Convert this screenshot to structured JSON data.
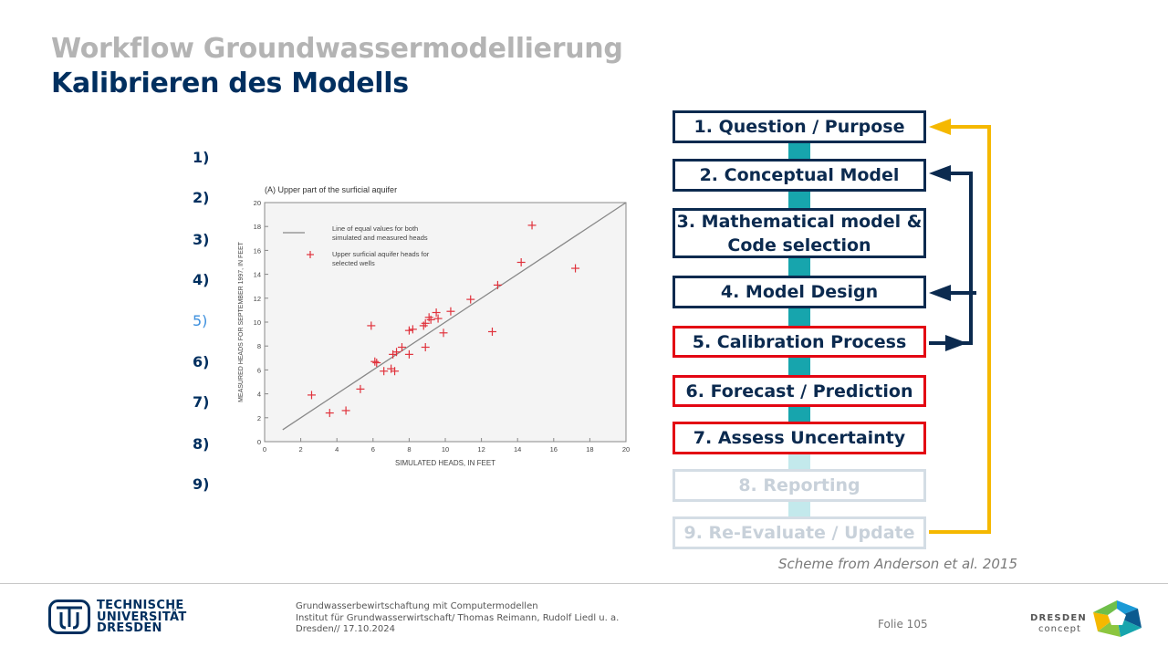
{
  "slide": {
    "title": "Workflow Groundwassermodellierung",
    "subtitle": "Kalibrieren des Modells"
  },
  "steps_numbers": [
    "1)",
    "2)",
    "3)",
    "4)",
    "5)",
    "6)",
    "7)",
    "8)",
    "9)"
  ],
  "active_step": "5)",
  "workflow": {
    "boxes": [
      {
        "label": "1. Question  / Purpose",
        "state": "normal"
      },
      {
        "label": "2. Conceptual Model",
        "state": "normal"
      },
      {
        "label": "3. Mathematical model & Code selection",
        "state": "normal"
      },
      {
        "label": "4. Model Design",
        "state": "normal"
      },
      {
        "label": "5. Calibration Process",
        "state": "highlight"
      },
      {
        "label": "6. Forecast / Prediction",
        "state": "highlight"
      },
      {
        "label": "7. Assess Uncertainty",
        "state": "highlight"
      },
      {
        "label": "8. Reporting",
        "state": "faded"
      },
      {
        "label": "9. Re-Evaluate / Update",
        "state": "faded"
      }
    ],
    "caption": "Scheme from Anderson et al. 2015",
    "colors": {
      "navy": "#0b2a4f",
      "red": "#e30613",
      "teal": "#17a5ad",
      "yellow": "#f5b800",
      "faded": "#d4dde5"
    }
  },
  "chart_data": {
    "type": "scatter",
    "title": "(A)  Upper part of the surficial aquifer",
    "xlabel": "SIMULATED HEADS, IN FEET",
    "ylabel": "MEASURED HEADS FOR SEPTEMBER 1997, IN FEET",
    "xlim": [
      0,
      20
    ],
    "ylim": [
      0,
      20
    ],
    "xticks": [
      0,
      2,
      4,
      6,
      8,
      10,
      12,
      14,
      16,
      18,
      20
    ],
    "yticks": [
      0,
      2,
      4,
      6,
      8,
      10,
      12,
      14,
      16,
      18,
      20
    ],
    "legend": [
      {
        "label": "Line of equal values for both simulated and measured heads",
        "marker": "line"
      },
      {
        "label": "Upper surficial aquifer heads for selected wells",
        "marker": "plus"
      }
    ],
    "line": {
      "x": [
        1,
        20
      ],
      "y": [
        1,
        20
      ]
    },
    "points": [
      {
        "x": 2.6,
        "y": 3.9
      },
      {
        "x": 3.6,
        "y": 2.4
      },
      {
        "x": 4.5,
        "y": 2.6
      },
      {
        "x": 5.3,
        "y": 4.4
      },
      {
        "x": 5.9,
        "y": 9.7
      },
      {
        "x": 6.1,
        "y": 6.7
      },
      {
        "x": 6.2,
        "y": 6.6
      },
      {
        "x": 6.6,
        "y": 5.9
      },
      {
        "x": 7.0,
        "y": 6.1
      },
      {
        "x": 7.1,
        "y": 7.3
      },
      {
        "x": 7.2,
        "y": 5.9
      },
      {
        "x": 7.3,
        "y": 7.5
      },
      {
        "x": 7.6,
        "y": 7.9
      },
      {
        "x": 8.0,
        "y": 7.3
      },
      {
        "x": 8.0,
        "y": 9.3
      },
      {
        "x": 8.2,
        "y": 9.4
      },
      {
        "x": 8.8,
        "y": 9.7
      },
      {
        "x": 8.9,
        "y": 7.9
      },
      {
        "x": 8.9,
        "y": 9.9
      },
      {
        "x": 9.1,
        "y": 10.4
      },
      {
        "x": 9.2,
        "y": 10.2
      },
      {
        "x": 9.5,
        "y": 10.8
      },
      {
        "x": 9.6,
        "y": 10.3
      },
      {
        "x": 9.9,
        "y": 9.1
      },
      {
        "x": 10.3,
        "y": 10.9
      },
      {
        "x": 11.4,
        "y": 11.9
      },
      {
        "x": 12.6,
        "y": 9.2
      },
      {
        "x": 12.9,
        "y": 13.1
      },
      {
        "x": 14.2,
        "y": 15.0
      },
      {
        "x": 14.8,
        "y": 18.1
      },
      {
        "x": 17.2,
        "y": 14.5
      }
    ],
    "grid": false,
    "legend_position": "top-left"
  },
  "footer": {
    "lines": [
      "Grundwasserbewirtschaftung mit Computermodellen",
      "Institut für Grundwasserwirtschaft/ Thomas Reimann, Rudolf Liedl u. a.",
      "Dresden// 17.10.2024"
    ],
    "page": "Folie 105",
    "tud_logo": [
      "TECHNISCHE",
      "UNIVERSITÄT",
      "DRESDEN"
    ],
    "dd_logo": [
      "DRESDEN",
      "concept"
    ]
  }
}
